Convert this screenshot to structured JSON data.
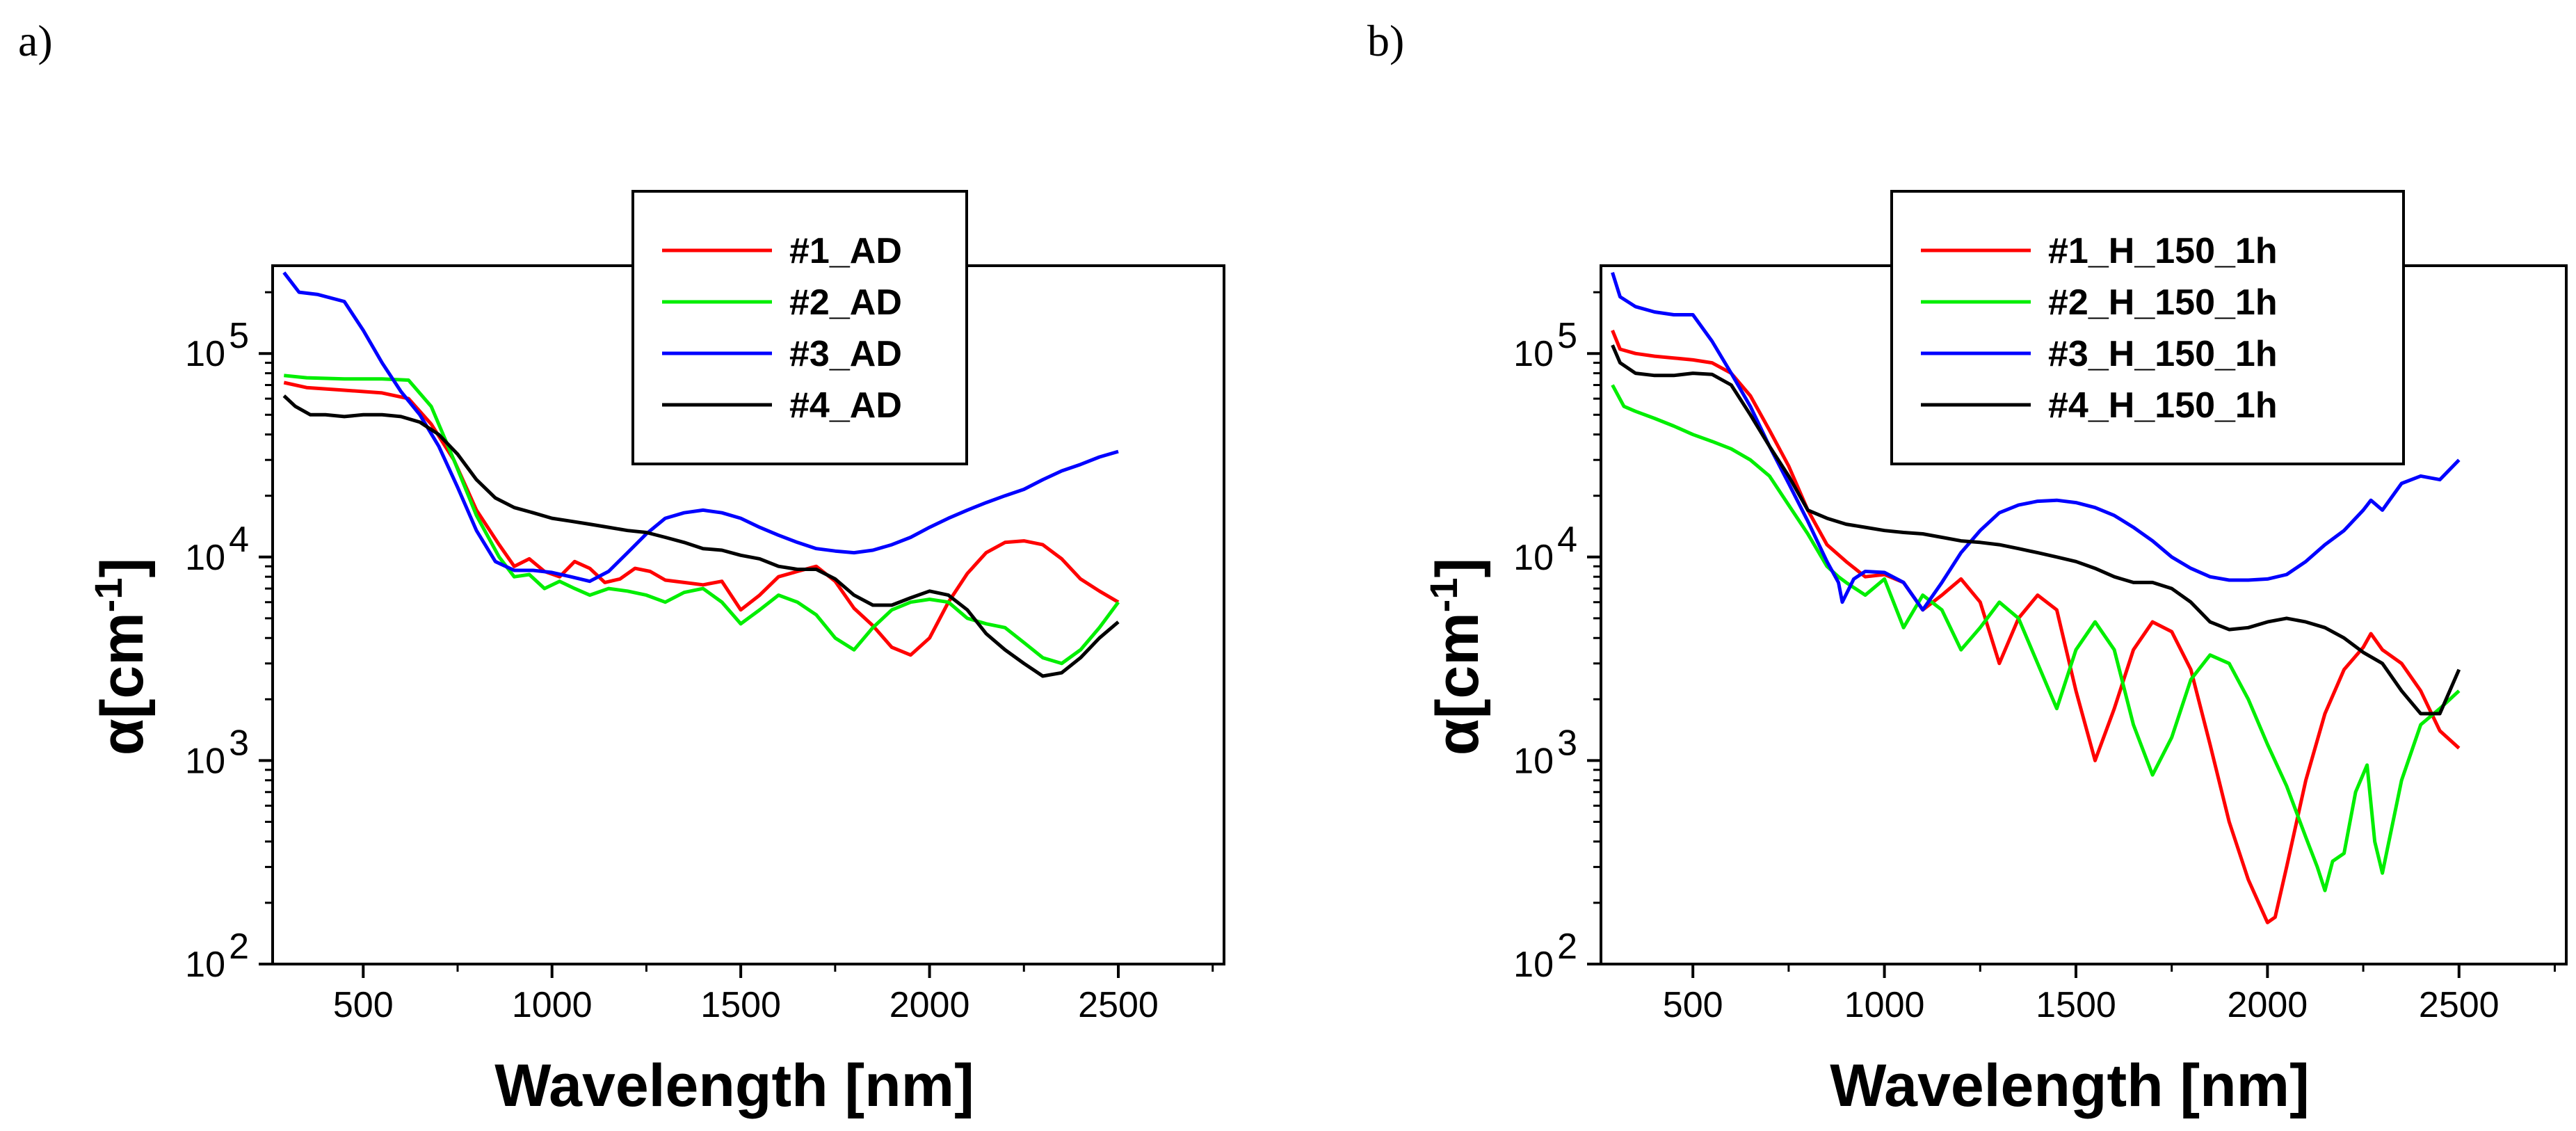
{
  "panels": [
    "a)",
    "b)"
  ],
  "chart_data": [
    {
      "type": "line",
      "panel_label": "a)",
      "xlabel": "Wavelength [nm]",
      "ylabel": "α[cm",
      "ylabel_sup": "-1",
      "ylabel_close": "]",
      "xlim": [
        260,
        2780
      ],
      "ylim": [
        100,
        270000
      ],
      "yscale": "log",
      "xticks": [
        500,
        1000,
        1500,
        2000,
        2500
      ],
      "xtick_labels": [
        "500",
        "1000",
        "1500",
        "2000",
        "2500"
      ],
      "yticks": [
        100,
        1000,
        10000,
        100000
      ],
      "ytick_base": "10",
      "ytick_exps": [
        "2",
        "3",
        "4",
        "5"
      ],
      "legend_position": "top-right",
      "series": [
        {
          "name": "#1_AD",
          "color": "#ff0000",
          "x": [
            290,
            350,
            450,
            550,
            620,
            680,
            740,
            800,
            860,
            900,
            940,
            980,
            1020,
            1060,
            1100,
            1140,
            1180,
            1220,
            1260,
            1300,
            1350,
            1400,
            1450,
            1500,
            1550,
            1600,
            1650,
            1700,
            1750,
            1800,
            1850,
            1900,
            1950,
            2000,
            2050,
            2100,
            2150,
            2200,
            2250,
            2300,
            2350,
            2400,
            2450,
            2500
          ],
          "y": [
            72000,
            68000,
            66000,
            64000,
            60000,
            45000,
            30000,
            17000,
            11500,
            9000,
            9800,
            8500,
            8000,
            9500,
            8800,
            7500,
            7800,
            8800,
            8500,
            7700,
            7500,
            7300,
            7600,
            5500,
            6500,
            8000,
            8500,
            9000,
            7600,
            5600,
            4600,
            3600,
            3300,
            4000,
            6000,
            8300,
            10500,
            11800,
            12000,
            11500,
            9800,
            7800,
            6800,
            6000
          ]
        },
        {
          "name": "#2_AD",
          "color": "#00ee00",
          "x": [
            290,
            350,
            450,
            550,
            620,
            680,
            740,
            800,
            860,
            900,
            940,
            980,
            1020,
            1060,
            1100,
            1150,
            1200,
            1250,
            1300,
            1350,
            1400,
            1450,
            1500,
            1550,
            1600,
            1650,
            1700,
            1750,
            1800,
            1850,
            1900,
            1950,
            2000,
            2050,
            2100,
            2150,
            2200,
            2250,
            2300,
            2350,
            2400,
            2450,
            2500
          ],
          "y": [
            78000,
            76000,
            75000,
            75000,
            74000,
            55000,
            30000,
            16000,
            10000,
            8000,
            8200,
            7000,
            7600,
            7000,
            6500,
            7000,
            6800,
            6500,
            6000,
            6700,
            7000,
            6000,
            4700,
            5500,
            6500,
            6000,
            5200,
            4000,
            3500,
            4500,
            5500,
            6000,
            6200,
            6000,
            5000,
            4700,
            4500,
            3800,
            3200,
            3000,
            3500,
            4500,
            6000
          ]
        },
        {
          "name": "#3_AD",
          "color": "#0000ff",
          "x": [
            290,
            330,
            380,
            450,
            500,
            550,
            600,
            650,
            700,
            750,
            800,
            850,
            900,
            950,
            1000,
            1050,
            1100,
            1150,
            1200,
            1250,
            1300,
            1350,
            1400,
            1450,
            1500,
            1550,
            1600,
            1650,
            1700,
            1750,
            1800,
            1850,
            1900,
            1950,
            2000,
            2050,
            2100,
            2150,
            2200,
            2250,
            2300,
            2350,
            2400,
            2450,
            2500
          ],
          "y": [
            250000,
            200000,
            195000,
            180000,
            130000,
            90000,
            65000,
            50000,
            35000,
            22000,
            13500,
            9500,
            8600,
            8600,
            8400,
            8000,
            7600,
            8500,
            10500,
            13000,
            15500,
            16500,
            17000,
            16500,
            15500,
            14000,
            12800,
            11800,
            11000,
            10700,
            10500,
            10800,
            11500,
            12500,
            14000,
            15500,
            17000,
            18500,
            20000,
            21500,
            24000,
            26500,
            28500,
            31000,
            33000
          ]
        },
        {
          "name": "#4_AD",
          "color": "#000000",
          "x": [
            290,
            320,
            360,
            400,
            450,
            500,
            550,
            600,
            650,
            700,
            750,
            800,
            850,
            900,
            950,
            1000,
            1050,
            1100,
            1150,
            1200,
            1250,
            1300,
            1350,
            1400,
            1450,
            1500,
            1550,
            1600,
            1650,
            1700,
            1750,
            1800,
            1850,
            1900,
            1950,
            2000,
            2050,
            2100,
            2150,
            2200,
            2250,
            2300,
            2350,
            2400,
            2450,
            2500
          ],
          "y": [
            62000,
            55000,
            50000,
            50000,
            49000,
            50000,
            50000,
            49000,
            46000,
            40000,
            32000,
            24000,
            19500,
            17500,
            16500,
            15500,
            15000,
            14500,
            14000,
            13500,
            13200,
            12500,
            11800,
            11000,
            10800,
            10200,
            9800,
            9000,
            8700,
            8700,
            7800,
            6500,
            5800,
            5800,
            6300,
            6800,
            6500,
            5500,
            4200,
            3500,
            3000,
            2600,
            2700,
            3200,
            4000,
            4800
          ]
        }
      ]
    },
    {
      "type": "line",
      "panel_label": "b)",
      "xlabel": "Wavelength [nm]",
      "ylabel": "α[cm",
      "ylabel_sup": "-1",
      "ylabel_close": "]",
      "xlim": [
        260,
        2780
      ],
      "ylim": [
        100,
        270000
      ],
      "yscale": "log",
      "xticks": [
        500,
        1000,
        1500,
        2000,
        2500
      ],
      "xtick_labels": [
        "500",
        "1000",
        "1500",
        "2000",
        "2500"
      ],
      "yticks": [
        100,
        1000,
        10000,
        100000
      ],
      "ytick_base": "10",
      "ytick_exps": [
        "2",
        "3",
        "4",
        "5"
      ],
      "legend_position": "top-right",
      "series": [
        {
          "name": "#1_H_150_1h",
          "color": "#ff0000",
          "x": [
            290,
            310,
            350,
            400,
            450,
            500,
            550,
            600,
            650,
            700,
            750,
            800,
            850,
            900,
            950,
            1000,
            1050,
            1100,
            1150,
            1200,
            1250,
            1300,
            1350,
            1400,
            1450,
            1500,
            1550,
            1600,
            1650,
            1700,
            1750,
            1800,
            1850,
            1900,
            1950,
            2000,
            2020,
            2050,
            2100,
            2150,
            2200,
            2250,
            2270,
            2300,
            2350,
            2400,
            2450,
            2500
          ],
          "y": [
            130000,
            105000,
            100000,
            97000,
            95000,
            93000,
            90000,
            80000,
            62000,
            42000,
            28000,
            17000,
            11500,
            9500,
            8000,
            8200,
            7500,
            5500,
            6500,
            7800,
            6000,
            3000,
            5000,
            6500,
            5500,
            2200,
            1000,
            1800,
            3500,
            4800,
            4300,
            2800,
            1200,
            500,
            260,
            160,
            170,
            300,
            800,
            1700,
            2800,
            3600,
            4200,
            3500,
            3000,
            2200,
            1400,
            1150
          ]
        },
        {
          "name": "#2_H_150_1h",
          "color": "#00ee00",
          "x": [
            290,
            320,
            350,
            400,
            450,
            500,
            550,
            600,
            650,
            700,
            750,
            800,
            850,
            880,
            900,
            950,
            1000,
            1050,
            1100,
            1150,
            1200,
            1250,
            1300,
            1350,
            1400,
            1450,
            1500,
            1550,
            1600,
            1650,
            1700,
            1750,
            1800,
            1850,
            1900,
            1950,
            2000,
            2050,
            2100,
            2130,
            2150,
            2170,
            2200,
            2230,
            2260,
            2280,
            2300,
            2350,
            2400,
            2450,
            2500
          ],
          "y": [
            70000,
            55000,
            52000,
            48000,
            44000,
            40000,
            37000,
            34000,
            30000,
            25000,
            18000,
            13000,
            9000,
            8000,
            7500,
            6500,
            7800,
            4500,
            6500,
            5500,
            3500,
            4500,
            6000,
            5000,
            3000,
            1800,
            3500,
            4800,
            3500,
            1500,
            850,
            1300,
            2500,
            3300,
            3000,
            2000,
            1200,
            750,
            420,
            300,
            230,
            320,
            350,
            700,
            950,
            400,
            280,
            800,
            1500,
            1800,
            2200
          ]
        },
        {
          "name": "#3_H_150_1h",
          "color": "#0000ff",
          "x": [
            290,
            310,
            350,
            400,
            450,
            500,
            550,
            600,
            650,
            700,
            750,
            800,
            850,
            880,
            890,
            920,
            950,
            1000,
            1050,
            1100,
            1150,
            1200,
            1250,
            1300,
            1350,
            1400,
            1450,
            1500,
            1550,
            1600,
            1650,
            1700,
            1750,
            1800,
            1850,
            1900,
            1950,
            2000,
            2050,
            2100,
            2150,
            2200,
            2250,
            2270,
            2300,
            2350,
            2400,
            2450,
            2500
          ],
          "y": [
            250000,
            190000,
            170000,
            160000,
            155000,
            155000,
            115000,
            80000,
            55000,
            35000,
            23000,
            15000,
            9500,
            7500,
            6000,
            7800,
            8500,
            8400,
            7500,
            5500,
            7500,
            10500,
            13500,
            16500,
            18000,
            18800,
            19000,
            18500,
            17500,
            16000,
            14000,
            12000,
            10000,
            8800,
            8000,
            7700,
            7700,
            7800,
            8200,
            9500,
            11500,
            13500,
            17000,
            19000,
            17000,
            23000,
            25000,
            24000,
            30000
          ]
        },
        {
          "name": "#4_H_150_1h",
          "color": "#000000",
          "x": [
            290,
            310,
            350,
            400,
            450,
            500,
            550,
            600,
            650,
            700,
            750,
            800,
            850,
            900,
            950,
            1000,
            1050,
            1100,
            1150,
            1200,
            1250,
            1300,
            1350,
            1400,
            1450,
            1500,
            1550,
            1600,
            1650,
            1700,
            1750,
            1800,
            1850,
            1900,
            1950,
            2000,
            2050,
            2100,
            2150,
            2200,
            2250,
            2300,
            2350,
            2400,
            2450,
            2500
          ],
          "y": [
            110000,
            90000,
            80000,
            78000,
            78000,
            80000,
            79000,
            70000,
            50000,
            35000,
            25000,
            17000,
            15500,
            14500,
            14000,
            13500,
            13200,
            13000,
            12500,
            12000,
            11800,
            11500,
            11000,
            10500,
            10000,
            9500,
            8800,
            8000,
            7500,
            7500,
            7000,
            6000,
            4800,
            4400,
            4500,
            4800,
            5000,
            4800,
            4500,
            4000,
            3400,
            3000,
            2200,
            1700,
            1700,
            2800
          ]
        }
      ]
    }
  ]
}
